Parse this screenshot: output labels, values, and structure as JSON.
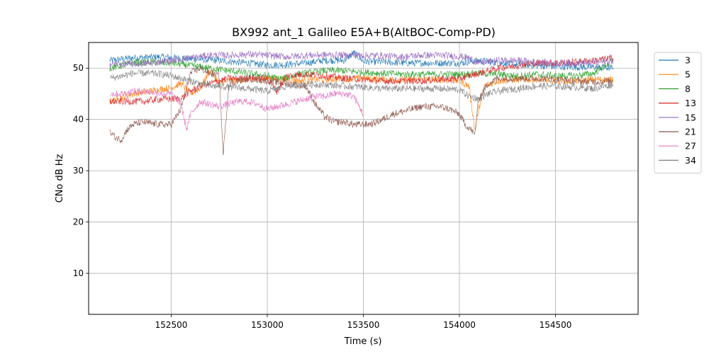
{
  "chart_data": {
    "type": "line",
    "title": "BX992 ant_1 Galileo E5A+B(AltBOC-Comp-PD)",
    "xlabel": "Time (s)",
    "ylabel": "CNo dB Hz",
    "xlim": [
      152070,
      154930
    ],
    "ylim": [
      2,
      55
    ],
    "xticks": [
      152500,
      153000,
      153500,
      154000,
      154500
    ],
    "yticks": [
      10,
      20,
      30,
      40,
      50
    ],
    "grid": true,
    "legend_position": "outside-right",
    "series": [
      {
        "name": "3",
        "color": "#1f77b4",
        "points": [
          [
            152180,
            51.5
          ],
          [
            152300,
            52.0
          ],
          [
            152450,
            52.2
          ],
          [
            152600,
            51.8
          ],
          [
            152700,
            51.6
          ],
          [
            152800,
            51.3
          ],
          [
            152900,
            51.0
          ],
          [
            153000,
            50.6
          ],
          [
            153100,
            50.7
          ],
          [
            153200,
            51.0
          ],
          [
            153300,
            51.5
          ],
          [
            153400,
            51.5
          ],
          [
            153450,
            53.0
          ],
          [
            153500,
            51.3
          ],
          [
            153600,
            51.2
          ],
          [
            153700,
            51.0
          ],
          [
            153800,
            51.0
          ],
          [
            153900,
            51.0
          ],
          [
            154000,
            51.0
          ],
          [
            154050,
            51.2
          ],
          [
            154100,
            51.5
          ],
          [
            154200,
            51.0
          ],
          [
            154300,
            50.7
          ],
          [
            154400,
            50.5
          ],
          [
            154500,
            50.3
          ],
          [
            154600,
            50.2
          ],
          [
            154700,
            50.2
          ],
          [
            154800,
            50.0
          ]
        ]
      },
      {
        "name": "5",
        "color": "#ff7f0e",
        "points": [
          [
            152180,
            43.5
          ],
          [
            152220,
            44.0
          ],
          [
            152300,
            45.0
          ],
          [
            152400,
            45.6
          ],
          [
            152500,
            46.2
          ],
          [
            152550,
            47.0
          ],
          [
            152600,
            45.0
          ],
          [
            152650,
            46.0
          ],
          [
            152700,
            49.5
          ],
          [
            152750,
            47.0
          ],
          [
            152800,
            47.5
          ],
          [
            152900,
            47.8
          ],
          [
            153000,
            48.0
          ],
          [
            153100,
            47.8
          ],
          [
            153200,
            47.5
          ],
          [
            153300,
            47.8
          ],
          [
            153400,
            48.0
          ],
          [
            153500,
            48.0
          ],
          [
            153600,
            47.8
          ],
          [
            153700,
            47.7
          ],
          [
            153800,
            47.8
          ],
          [
            153900,
            47.8
          ],
          [
            154000,
            47.5
          ],
          [
            154050,
            46.5
          ],
          [
            154080,
            38.0
          ],
          [
            154100,
            42.0
          ],
          [
            154130,
            46.5
          ],
          [
            154200,
            47.5
          ],
          [
            154300,
            47.8
          ],
          [
            154400,
            47.8
          ],
          [
            154500,
            47.6
          ],
          [
            154600,
            47.5
          ],
          [
            154700,
            47.8
          ],
          [
            154800,
            47.8
          ]
        ]
      },
      {
        "name": "8",
        "color": "#2ca02c",
        "points": [
          [
            152180,
            50.0
          ],
          [
            152300,
            51.0
          ],
          [
            152400,
            51.2
          ],
          [
            152500,
            51.0
          ],
          [
            152600,
            50.5
          ],
          [
            152700,
            50.0
          ],
          [
            152800,
            49.5
          ],
          [
            152900,
            49.0
          ],
          [
            153000,
            48.5
          ],
          [
            153050,
            48.0
          ],
          [
            153100,
            48.0
          ],
          [
            153150,
            48.8
          ],
          [
            153200,
            49.0
          ],
          [
            153300,
            49.5
          ],
          [
            153400,
            49.5
          ],
          [
            153500,
            49.2
          ],
          [
            153600,
            49.0
          ],
          [
            153700,
            48.8
          ],
          [
            153800,
            48.8
          ],
          [
            153900,
            48.8
          ],
          [
            154000,
            48.8
          ],
          [
            154100,
            49.0
          ],
          [
            154200,
            48.8
          ],
          [
            154300,
            48.5
          ],
          [
            154400,
            48.8
          ],
          [
            154500,
            48.5
          ],
          [
            154600,
            48.5
          ],
          [
            154700,
            49.0
          ],
          [
            154800,
            51.5
          ]
        ]
      },
      {
        "name": "13",
        "color": "#d62728",
        "points": [
          [
            152180,
            43.5
          ],
          [
            152250,
            43.5
          ],
          [
            152350,
            43.5
          ],
          [
            152450,
            44.0
          ],
          [
            152550,
            44.0
          ],
          [
            152600,
            45.5
          ],
          [
            152650,
            46.5
          ],
          [
            152700,
            47.0
          ],
          [
            152750,
            47.5
          ],
          [
            152800,
            48.0
          ],
          [
            152900,
            48.0
          ],
          [
            153000,
            48.0
          ],
          [
            153050,
            45.5
          ],
          [
            153100,
            48.5
          ],
          [
            153200,
            48.8
          ],
          [
            153300,
            48.5
          ],
          [
            153400,
            48.0
          ],
          [
            153500,
            47.8
          ],
          [
            153600,
            47.5
          ],
          [
            153700,
            47.5
          ],
          [
            153800,
            47.5
          ],
          [
            153900,
            47.8
          ],
          [
            154000,
            48.0
          ],
          [
            154100,
            49.0
          ],
          [
            154200,
            50.0
          ],
          [
            154300,
            50.5
          ],
          [
            154400,
            51.0
          ],
          [
            154500,
            51.0
          ],
          [
            154600,
            51.2
          ],
          [
            154700,
            51.5
          ],
          [
            154800,
            52.0
          ]
        ]
      },
      {
        "name": "15",
        "color": "#9467bd",
        "points": [
          [
            152180,
            50.8
          ],
          [
            152300,
            50.8
          ],
          [
            152400,
            51.0
          ],
          [
            152500,
            51.5
          ],
          [
            152600,
            52.0
          ],
          [
            152700,
            52.5
          ],
          [
            152800,
            52.5
          ],
          [
            152900,
            52.7
          ],
          [
            153000,
            52.5
          ],
          [
            153100,
            52.2
          ],
          [
            153200,
            52.5
          ],
          [
            153300,
            52.6
          ],
          [
            153400,
            52.5
          ],
          [
            153500,
            52.5
          ],
          [
            153600,
            52.4
          ],
          [
            153700,
            52.2
          ],
          [
            153800,
            52.5
          ],
          [
            153900,
            52.5
          ],
          [
            154000,
            52.3
          ],
          [
            154050,
            52.0
          ],
          [
            154100,
            51.0
          ],
          [
            154200,
            51.5
          ],
          [
            154300,
            51.5
          ],
          [
            154400,
            51.2
          ],
          [
            154500,
            51.0
          ],
          [
            154600,
            51.0
          ],
          [
            154700,
            51.0
          ],
          [
            154800,
            51.5
          ]
        ]
      },
      {
        "name": "21",
        "color": "#8c564b",
        "points": [
          [
            152180,
            37.5
          ],
          [
            152210,
            36.5
          ],
          [
            152240,
            36.0
          ],
          [
            152270,
            38.0
          ],
          [
            152300,
            39.0
          ],
          [
            152350,
            39.5
          ],
          [
            152400,
            39.2
          ],
          [
            152450,
            39.0
          ],
          [
            152500,
            39.0
          ],
          [
            152550,
            42.0
          ],
          [
            152600,
            49.0
          ],
          [
            152650,
            50.0
          ],
          [
            152700,
            49.0
          ],
          [
            152750,
            48.5
          ],
          [
            152770,
            33.0
          ],
          [
            152800,
            47.0
          ],
          [
            152900,
            48.0
          ],
          [
            153000,
            47.5
          ],
          [
            153100,
            47.0
          ],
          [
            153200,
            46.5
          ],
          [
            153250,
            43.0
          ],
          [
            153300,
            40.5
          ],
          [
            153350,
            39.5
          ],
          [
            153400,
            39.5
          ],
          [
            153450,
            39.0
          ],
          [
            153500,
            39.0
          ],
          [
            153550,
            39.2
          ],
          [
            153600,
            40.0
          ],
          [
            153650,
            41.0
          ],
          [
            153700,
            41.5
          ],
          [
            153750,
            42.0
          ],
          [
            153800,
            42.5
          ],
          [
            153850,
            42.5
          ],
          [
            153900,
            42.5
          ],
          [
            153950,
            42.0
          ],
          [
            154000,
            41.0
          ],
          [
            154030,
            39.0
          ],
          [
            154060,
            38.0
          ],
          [
            154080,
            37.0
          ],
          [
            154100,
            44.0
          ],
          [
            154150,
            47.0
          ],
          [
            154200,
            48.0
          ],
          [
            154300,
            48.0
          ],
          [
            154400,
            48.0
          ],
          [
            154500,
            47.8
          ],
          [
            154600,
            47.5
          ],
          [
            154700,
            47.3
          ],
          [
            154800,
            47.5
          ]
        ]
      },
      {
        "name": "27",
        "color": "#e377c2",
        "points": [
          [
            152180,
            45.0
          ],
          [
            152250,
            45.0
          ],
          [
            152300,
            45.5
          ],
          [
            152350,
            45.5
          ],
          [
            152400,
            45.3
          ],
          [
            152450,
            45.0
          ],
          [
            152500,
            45.0
          ],
          [
            152550,
            43.0
          ],
          [
            152580,
            38.0
          ],
          [
            152600,
            41.0
          ],
          [
            152650,
            43.5
          ],
          [
            152700,
            43.0
          ],
          [
            152750,
            42.5
          ],
          [
            152800,
            43.0
          ],
          [
            152850,
            43.5
          ],
          [
            152900,
            43.5
          ],
          [
            152950,
            43.0
          ],
          [
            153000,
            42.0
          ],
          [
            153050,
            42.5
          ],
          [
            153100,
            43.0
          ],
          [
            153150,
            43.5
          ],
          [
            153200,
            44.0
          ],
          [
            153250,
            44.5
          ],
          [
            153300,
            44.5
          ],
          [
            153350,
            45.0
          ],
          [
            153400,
            45.0
          ],
          [
            153450,
            44.5
          ],
          [
            153500,
            41.0
          ]
        ]
      },
      {
        "name": "34",
        "color": "#7f7f7f",
        "points": [
          [
            152180,
            48.0
          ],
          [
            152250,
            48.5
          ],
          [
            152300,
            49.0
          ],
          [
            152350,
            49.0
          ],
          [
            152400,
            49.0
          ],
          [
            152450,
            48.8
          ],
          [
            152500,
            48.5
          ],
          [
            152550,
            48.0
          ],
          [
            152600,
            47.5
          ],
          [
            152650,
            47.0
          ],
          [
            152700,
            46.5
          ],
          [
            152750,
            46.5
          ],
          [
            152800,
            46.3
          ],
          [
            152900,
            46.0
          ],
          [
            153000,
            45.5
          ],
          [
            153050,
            46.0
          ],
          [
            153100,
            46.5
          ],
          [
            153200,
            46.8
          ],
          [
            153300,
            46.8
          ],
          [
            153400,
            46.5
          ],
          [
            153500,
            46.3
          ],
          [
            153600,
            46.0
          ],
          [
            153700,
            46.0
          ],
          [
            153800,
            46.0
          ],
          [
            153900,
            46.0
          ],
          [
            154000,
            45.8
          ],
          [
            154050,
            44.5
          ],
          [
            154100,
            44.0
          ],
          [
            154150,
            45.0
          ],
          [
            154200,
            45.5
          ],
          [
            154300,
            46.0
          ],
          [
            154400,
            46.5
          ],
          [
            154500,
            46.5
          ],
          [
            154600,
            46.3
          ],
          [
            154700,
            46.0
          ],
          [
            154800,
            46.8
          ]
        ]
      }
    ]
  }
}
